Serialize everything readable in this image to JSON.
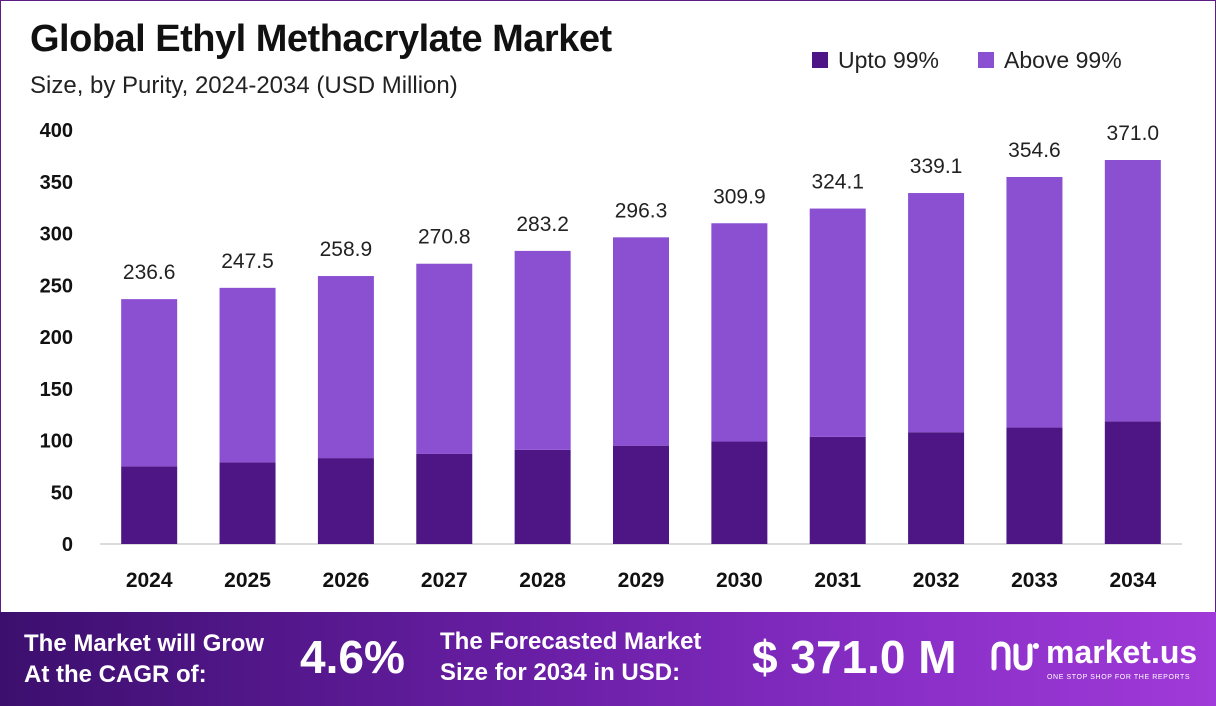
{
  "header": {
    "title": "Global Ethyl Methacrylate Market",
    "subtitle": "Size, by Purity, 2024-2034 (USD Million)"
  },
  "legend": [
    {
      "label": "Upto 99%",
      "color": "#4e1684"
    },
    {
      "label": "Above 99%",
      "color": "#8b4fd2"
    }
  ],
  "chart_data": {
    "type": "bar",
    "stacked": true,
    "title": "Global Ethyl Methacrylate Market",
    "subtitle": "Size, by Purity, 2024-2034 (USD Million)",
    "xlabel": "",
    "ylabel": "",
    "ylim": [
      0,
      400
    ],
    "yticks": [
      0,
      50,
      100,
      150,
      200,
      250,
      300,
      350,
      400
    ],
    "categories": [
      "2024",
      "2025",
      "2026",
      "2027",
      "2028",
      "2029",
      "2030",
      "2031",
      "2032",
      "2033",
      "2034"
    ],
    "series": [
      {
        "name": "Upto 99%",
        "color": "#4e1684",
        "values": [
          75.0,
          79.0,
          83.0,
          87.0,
          91.0,
          95.0,
          99.0,
          103.5,
          108.0,
          112.5,
          118.5
        ]
      },
      {
        "name": "Above 99%",
        "color": "#8b4fd2",
        "values": [
          161.6,
          168.5,
          175.9,
          183.8,
          192.2,
          201.3,
          210.9,
          220.6,
          231.1,
          242.1,
          252.5
        ]
      }
    ],
    "totals": [
      "236.6",
      "247.5",
      "258.9",
      "270.8",
      "283.2",
      "296.3",
      "309.9",
      "324.1",
      "339.1",
      "354.6",
      "371.0"
    ],
    "grid": false,
    "legend_position": "top-right"
  },
  "footer": {
    "cagr_label_line1": "The Market will Grow",
    "cagr_label_line2": "At the CAGR of:",
    "cagr_value": "4.6%",
    "forecast_label_line1": "The Forecasted Market",
    "forecast_label_line2": "Size for 2034 in USD:",
    "forecast_value": "$ 371.0 M",
    "brand_name": "market.us",
    "brand_tagline": "ONE STOP SHOP FOR THE REPORTS"
  }
}
